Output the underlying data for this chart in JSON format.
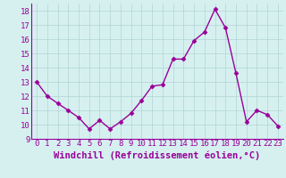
{
  "x": [
    0,
    1,
    2,
    3,
    4,
    5,
    6,
    7,
    8,
    9,
    10,
    11,
    12,
    13,
    14,
    15,
    16,
    17,
    18,
    19,
    20,
    21,
    22,
    23
  ],
  "y": [
    13,
    12,
    11.5,
    11,
    10.5,
    9.7,
    10.3,
    9.7,
    10.2,
    10.8,
    11.7,
    12.7,
    12.8,
    14.6,
    14.6,
    15.9,
    16.5,
    18.1,
    16.8,
    13.6,
    10.2,
    11.0,
    10.7,
    9.9
  ],
  "line_color": "#990099",
  "marker": "D",
  "marker_size": 2.5,
  "bg_color": "#d6f0f0",
  "grid_color": "#b0d4d4",
  "xlabel": "Windchill (Refroidissement éolien,°C)",
  "xlabel_color": "#990099",
  "tick_color": "#990099",
  "ylim": [
    9,
    18.5
  ],
  "yticks": [
    9,
    10,
    11,
    12,
    13,
    14,
    15,
    16,
    17,
    18
  ],
  "xlim": [
    -0.5,
    23.5
  ],
  "xticks": [
    0,
    1,
    2,
    3,
    4,
    5,
    6,
    7,
    8,
    9,
    10,
    11,
    12,
    13,
    14,
    15,
    16,
    17,
    18,
    19,
    20,
    21,
    22,
    23
  ],
  "spine_color": "#990099",
  "line_width": 1.0,
  "font_size": 6.5,
  "xlabel_fontsize": 7.5
}
